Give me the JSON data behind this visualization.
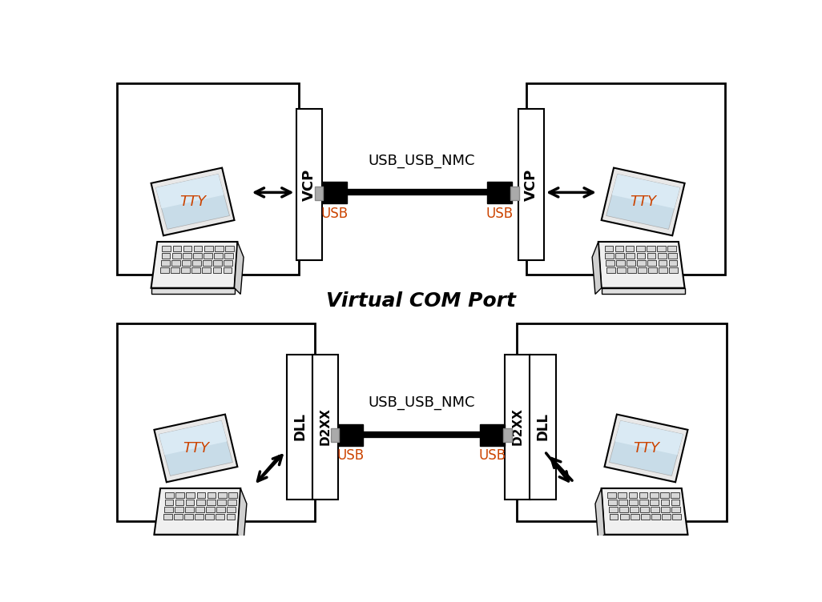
{
  "bg_color": "#ffffff",
  "text_color": "#000000",
  "usb_label_color": "#cc4400",
  "title_vcp": "Virtual COM Port",
  "title_fontsize": 18,
  "vcp_label": "VCP",
  "dll_label": "DLL",
  "d2xx_label": "D2XX",
  "tty_label": "TTY",
  "usb_label": "USB",
  "cable_label": "USB_USB_NMC"
}
